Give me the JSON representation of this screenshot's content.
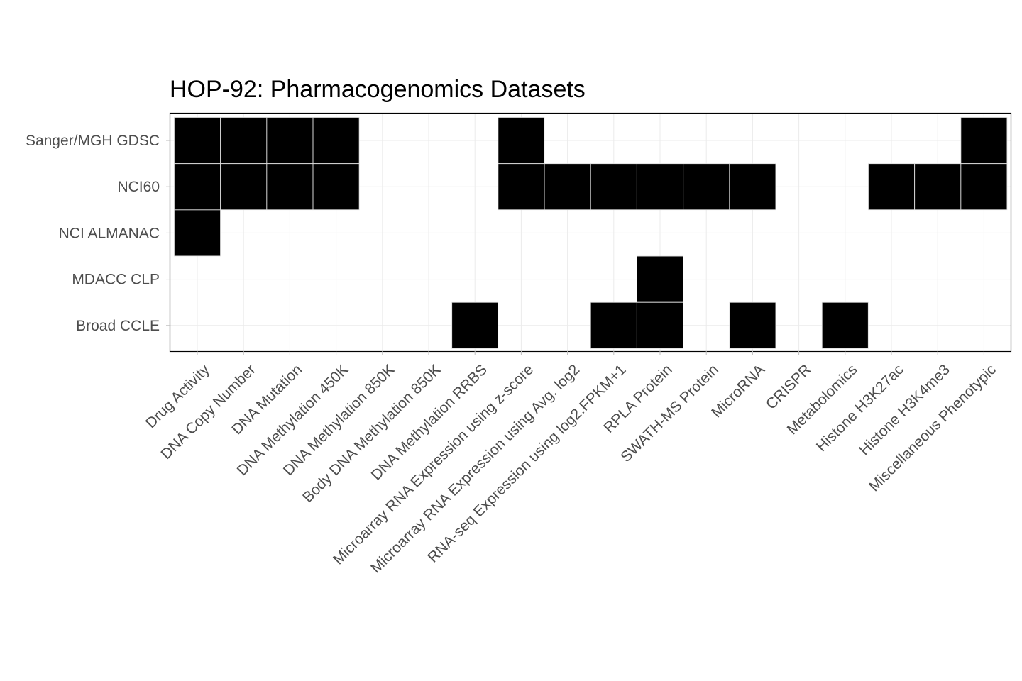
{
  "chart_data": {
    "type": "heatmap",
    "title": "HOP-92: Pharmacogenomics Datasets",
    "xlabel": "",
    "ylabel": "",
    "x_categories": [
      "Drug Activity",
      "DNA Copy Number",
      "DNA Mutation",
      "DNA Methylation 450K",
      "DNA Methylation 850K",
      "Body DNA Methylation 850K",
      "DNA Methylation RRBS",
      "Microarray RNA Expression using z-score",
      "Microarray RNA Expression using Avg. log2",
      "RNA-seq Expression using log2.FPKM+1",
      "RPLA Protein",
      "SWATH-MS Protein",
      "MicroRNA",
      "CRISPR",
      "Metabolomics",
      "Histone H3K27ac",
      "Histone H3K4me3",
      "Miscellaneous Phenotypic"
    ],
    "y_categories": [
      "Sanger/MGH GDSC",
      "NCI60",
      "NCI ALMANAC",
      "MDACC CLP",
      "Broad CCLE"
    ],
    "matrix": [
      [
        1,
        1,
        1,
        1,
        0,
        0,
        0,
        1,
        0,
        0,
        0,
        0,
        0,
        0,
        0,
        0,
        0,
        1
      ],
      [
        1,
        1,
        1,
        1,
        0,
        0,
        0,
        1,
        1,
        1,
        1,
        1,
        1,
        0,
        0,
        1,
        1,
        1
      ],
      [
        1,
        0,
        0,
        0,
        0,
        0,
        0,
        0,
        0,
        0,
        0,
        0,
        0,
        0,
        0,
        0,
        0,
        0
      ],
      [
        0,
        0,
        0,
        0,
        0,
        0,
        0,
        0,
        0,
        0,
        1,
        0,
        0,
        0,
        0,
        0,
        0,
        0
      ],
      [
        0,
        0,
        0,
        0,
        0,
        0,
        1,
        0,
        0,
        1,
        1,
        0,
        1,
        0,
        1,
        0,
        0,
        0
      ]
    ],
    "fill_color": "#000000",
    "cell_border_color": "#d9d9d9",
    "grid": true,
    "legend": "none"
  },
  "colors": {
    "background": "#ffffff",
    "panel_border": "#000000",
    "grid": "#ebebeb",
    "tick": "#bdbdbd",
    "tick_label": "#4d4d4d",
    "title": "#000000"
  }
}
